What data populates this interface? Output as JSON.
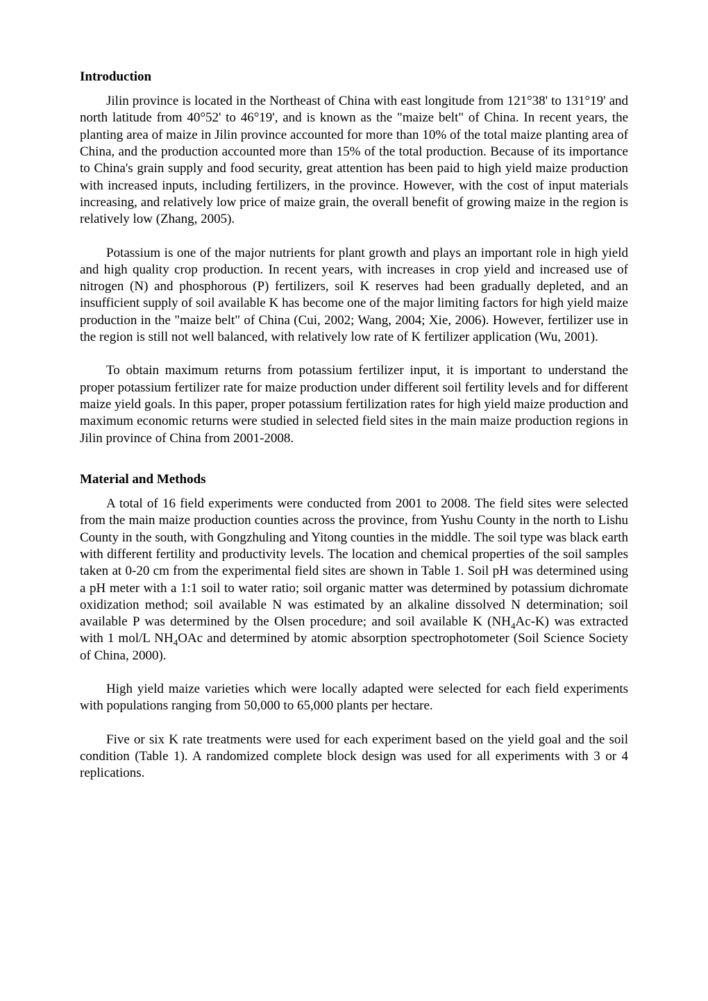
{
  "headings": {
    "introduction": "Introduction",
    "material_methods": "Material and Methods"
  },
  "intro": {
    "p1_a": "Jilin province is located in the Northeast of China with east longitude from 121°38' to 131°19' and north latitude from 40°52' to 46°19', and is known as the \"maize belt\" of China. In recent years, the planting area of maize in Jilin province accounted for more than 10% of the total maize planting area of China, and the production accounted more than 15% of the total production. Because of its importance to China's grain supply and food security, great attention has been paid to high yield maize production with increased inputs, including fertilizers, in the province. However, with the cost of input materials increasing, and relatively low price of maize grain, the overall benefit of growing maize in the region is relatively low (Zhang, 2005).",
    "p2": "Potassium is one of the major nutrients for plant growth and plays an important role in high yield and high quality crop production. In recent years, with increases in crop yield and increased use of nitrogen (N) and phosphorous (P) fertilizers, soil K reserves had been gradually depleted, and an insufficient supply of soil available K has become one of the major limiting factors for high yield maize production in the \"maize belt\" of China (Cui, 2002; Wang, 2004; Xie, 2006). However, fertilizer use in the region is still not well balanced, with relatively low rate of K fertilizer application (Wu, 2001).",
    "p3": "To obtain maximum returns from potassium fertilizer input, it is important to understand the proper potassium fertilizer rate for maize production under different soil fertility levels and for different maize yield goals. In this paper, proper potassium fertilization rates for high yield maize production and maximum economic returns were studied in selected field sites in the main maize production regions in Jilin province of China from 2001-2008."
  },
  "methods": {
    "p1_a": "A total of 16 field experiments were conducted from 2001 to 2008. The field sites were selected from the main maize production counties across the province, from Yushu County in the north to Lishu County in the south, with Gongzhuling and Yitong counties in the middle. The soil type was black earth with different fertility and productivity levels. The location and chemical properties of the soil samples taken at 0-20 cm from the experimental field sites are shown in Table 1. Soil pH was determined using a pH meter with a 1:1 soil to water ratio; soil organic matter was determined by potassium dichromate oxidization method; soil available N was estimated by an alkaline dissolved N determination; soil available P was determined by the Olsen procedure; and soil available K (NH",
    "p1_b": "Ac-K) was extracted with 1 mol/L NH",
    "p1_c": "OAc and determined by atomic absorption spectrophotometer (Soil Science Society of China, 2000).",
    "p2": "High yield maize varieties which were locally adapted were selected for each field experiments with populations ranging from 50,000 to 65,000 plants per hectare.",
    "p3": "Five or six K rate treatments were used for each experiment based on the yield goal and the soil condition (Table 1). A randomized complete block design was used for all experiments with 3 or 4 replications."
  },
  "sub4": "4"
}
